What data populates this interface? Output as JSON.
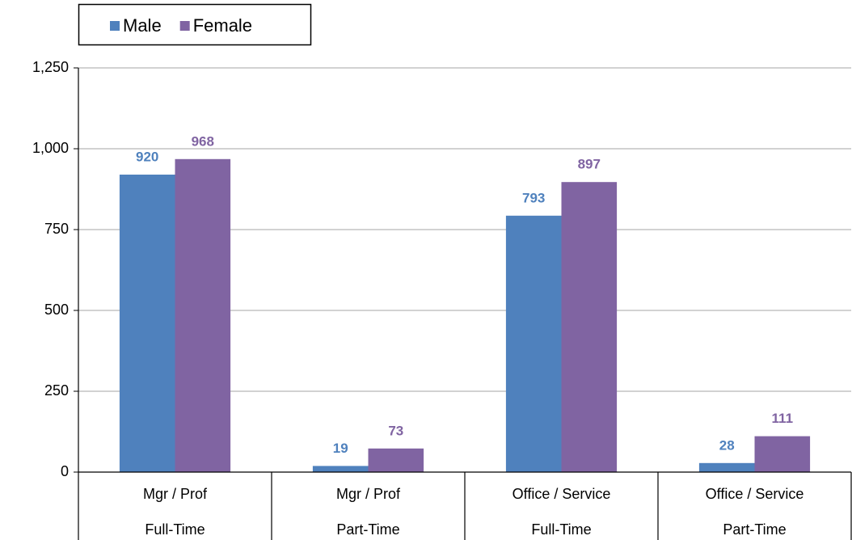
{
  "chart_data": {
    "type": "bar",
    "categories": [
      [
        "Mgr / Prof",
        "Full-Time"
      ],
      [
        "Mgr / Prof",
        "Part-Time"
      ],
      [
        "Office / Service",
        "Full-Time"
      ],
      [
        "Office / Service",
        "Part-Time"
      ]
    ],
    "series": [
      {
        "name": "Male",
        "color": "#4f81bd",
        "values": [
          920,
          19,
          793,
          28
        ]
      },
      {
        "name": "Female",
        "color": "#8064a2",
        "values": [
          968,
          73,
          897,
          111
        ]
      }
    ],
    "ylim": [
      0,
      1250
    ],
    "yticks": [
      0,
      250,
      500,
      750,
      {
        "value": 1000,
        "label": "1,000"
      },
      {
        "value": 1250,
        "label": "1,250"
      }
    ],
    "grid": true
  }
}
